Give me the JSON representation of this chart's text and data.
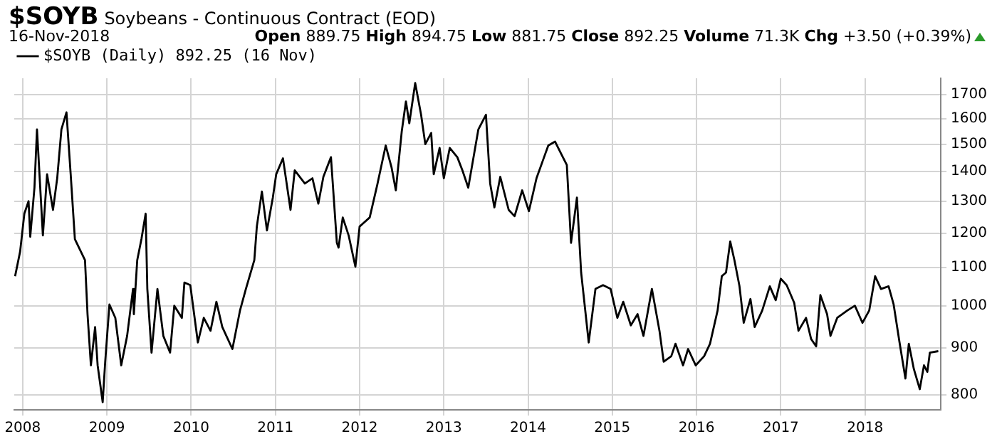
{
  "chart_data": {
    "type": "line",
    "title": "$SOYB",
    "subtitle": "Soybeans - Continuous Contract (EOD)",
    "annotations": [
      "16-Nov-2018",
      "Open 889.75 High 894.75 Low 881.75 Close 892.25 Volume 71.3K Chg +3.50 (+0.39%)"
    ],
    "x": [
      2007.91,
      2007.97,
      2008.02,
      2008.07,
      2008.09,
      2008.14,
      2008.17,
      2008.24,
      2008.29,
      2008.36,
      2008.41,
      2008.46,
      2008.52,
      2008.57,
      2008.62,
      2008.74,
      2008.77,
      2008.81,
      2008.86,
      2008.89,
      2008.95,
      2008.98,
      2009.03,
      2009.1,
      2009.17,
      2009.24,
      2009.31,
      2009.32,
      2009.36,
      2009.41,
      2009.46,
      2009.48,
      2009.53,
      2009.6,
      2009.67,
      2009.75,
      2009.8,
      2009.89,
      2009.92,
      2009.99,
      2010.08,
      2010.15,
      2010.23,
      2010.3,
      2010.37,
      2010.49,
      2010.58,
      2010.65,
      2010.75,
      2010.78,
      2010.84,
      2010.9,
      2010.97,
      2011.01,
      2011.09,
      2011.18,
      2011.23,
      2011.35,
      2011.44,
      2011.51,
      2011.57,
      2011.66,
      2011.73,
      2011.75,
      2011.8,
      2011.87,
      2011.95,
      2012.0,
      2012.12,
      2012.21,
      2012.31,
      2012.38,
      2012.43,
      2012.5,
      2012.55,
      2012.59,
      2012.66,
      2012.73,
      2012.78,
      2012.85,
      2012.88,
      2012.95,
      2013.0,
      2013.07,
      2013.16,
      2013.22,
      2013.29,
      2013.41,
      2013.5,
      2013.55,
      2013.6,
      2013.67,
      2013.77,
      2013.84,
      2013.93,
      2014.01,
      2014.1,
      2014.19,
      2014.24,
      2014.32,
      2014.38,
      2014.46,
      2014.51,
      2014.58,
      2014.63,
      2014.72,
      2014.8,
      2014.89,
      2014.98,
      2015.06,
      2015.13,
      2015.22,
      2015.3,
      2015.37,
      2015.47,
      2015.56,
      2015.61,
      2015.7,
      2015.75,
      2015.84,
      2015.9,
      2015.99,
      2016.09,
      2016.16,
      2016.25,
      2016.3,
      2016.35,
      2016.4,
      2016.45,
      2016.51,
      2016.56,
      2016.64,
      2016.69,
      2016.78,
      2016.87,
      2016.94,
      2017.0,
      2017.07,
      2017.16,
      2017.21,
      2017.3,
      2017.36,
      2017.42,
      2017.47,
      2017.55,
      2017.59,
      2017.67,
      2017.79,
      2017.88,
      2017.97,
      2018.05,
      2018.12,
      2018.19,
      2018.28,
      2018.34,
      2018.41,
      2018.48,
      2018.52,
      2018.58,
      2018.65,
      2018.7,
      2018.74,
      2018.77,
      2018.87
    ],
    "series": [
      {
        "name": "$SOYB (Daily) 892.25 (16 Nov)",
        "color": "#000000",
        "values": [
          1077,
          1146,
          1260,
          1300,
          1189,
          1345,
          1557,
          1193,
          1391,
          1272,
          1377,
          1557,
          1625,
          1391,
          1182,
          1121,
          979,
          861,
          948,
          861,
          785,
          869,
          1003,
          970,
          861,
          927,
          1043,
          979,
          1121,
          1182,
          1260,
          1043,
          889,
          1043,
          927,
          889,
          1000,
          970,
          1060,
          1053,
          912,
          970,
          939,
          1010,
          948,
          897,
          988,
          1043,
          1121,
          1220,
          1332,
          1208,
          1312,
          1391,
          1448,
          1272,
          1405,
          1359,
          1377,
          1292,
          1382,
          1452,
          1171,
          1157,
          1248,
          1193,
          1103,
          1220,
          1248,
          1355,
          1495,
          1414,
          1336,
          1548,
          1670,
          1581,
          1749,
          1615,
          1500,
          1543,
          1391,
          1486,
          1377,
          1486,
          1452,
          1405,
          1345,
          1557,
          1615,
          1359,
          1280,
          1382,
          1272,
          1252,
          1336,
          1268,
          1377,
          1452,
          1495,
          1510,
          1472,
          1424,
          1171,
          1312,
          1087,
          912,
          1043,
          1053,
          1043,
          970,
          1010,
          952,
          979,
          927,
          1043,
          939,
          869,
          881,
          909,
          861,
          897,
          861,
          881,
          909,
          988,
          1077,
          1087,
          1175,
          1121,
          1050,
          958,
          1017,
          948,
          988,
          1050,
          1014,
          1070,
          1053,
          1007,
          939,
          970,
          920,
          903,
          1027,
          979,
          927,
          970,
          988,
          1000,
          958,
          988,
          1077,
          1043,
          1050,
          1003,
          912,
          833,
          909,
          853,
          811,
          861,
          847,
          889,
          892.25
        ]
      }
    ],
    "xlim": [
      2007.9,
      2018.9
    ],
    "xticks": [
      2008,
      2009,
      2010,
      2011,
      2012,
      2013,
      2014,
      2015,
      2016,
      2017,
      2018
    ],
    "ylim": [
      770,
      1770
    ],
    "yticks": [
      800,
      900,
      1000,
      1100,
      1200,
      1300,
      1400,
      1500,
      1600,
      1700
    ],
    "log": true,
    "grid": true,
    "legend": "top left",
    "marker": "none",
    "line_style": "solid"
  }
}
